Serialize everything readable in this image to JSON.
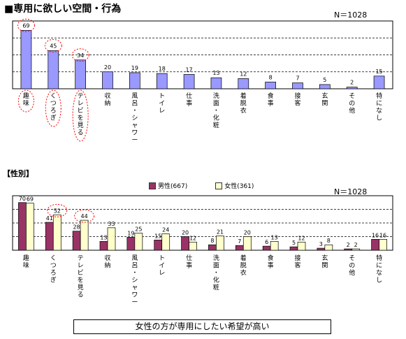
{
  "page": {
    "title": "■専用に欲しい空間・行為",
    "section_label": "【性別】",
    "summary": "女性の方が専用にしたい希望が高い"
  },
  "chart_data": [
    {
      "type": "bar",
      "n_label": "N＝1028",
      "categories": [
        "趣味",
        "くつろぎ",
        "テレビを見る",
        "収納",
        "風呂・シャワー",
        "トイレ",
        "仕事",
        "洗面・化粧",
        "着脱衣",
        "食事",
        "接客",
        "玄関",
        "その他",
        "特になし"
      ],
      "series": [
        {
          "values": [
            69,
            45,
            34,
            20,
            19,
            18,
            17,
            13,
            12,
            8,
            7,
            5,
            2,
            15
          ],
          "color": "#9999ff"
        }
      ],
      "ylim": [
        0,
        80
      ],
      "grid": true,
      "highlighted": [
        "趣味",
        "くつろぎ",
        "テレビを見る"
      ]
    },
    {
      "type": "bar",
      "n_label": "N＝1028",
      "categories": [
        "趣味",
        "くつろぎ",
        "テレビを見る",
        "収納",
        "風呂・シャワー",
        "トイレ",
        "仕事",
        "洗面・化粧",
        "着脱衣",
        "食事",
        "接客",
        "玄関",
        "その他",
        "特になし"
      ],
      "series": [
        {
          "name": "男性(667)",
          "values": [
            70,
            41,
            28,
            13,
            19,
            15,
            20,
            8,
            7,
            6,
            5,
            3,
            2,
            16
          ],
          "color": "#993366"
        },
        {
          "name": "女性(361)",
          "values": [
            69,
            52,
            44,
            33,
            25,
            24,
            12,
            21,
            20,
            13,
            12,
            8,
            2,
            16
          ],
          "color": "#ffffcc"
        }
      ],
      "ylim": [
        0,
        80
      ],
      "grid": true,
      "legend_position": "top"
    }
  ]
}
